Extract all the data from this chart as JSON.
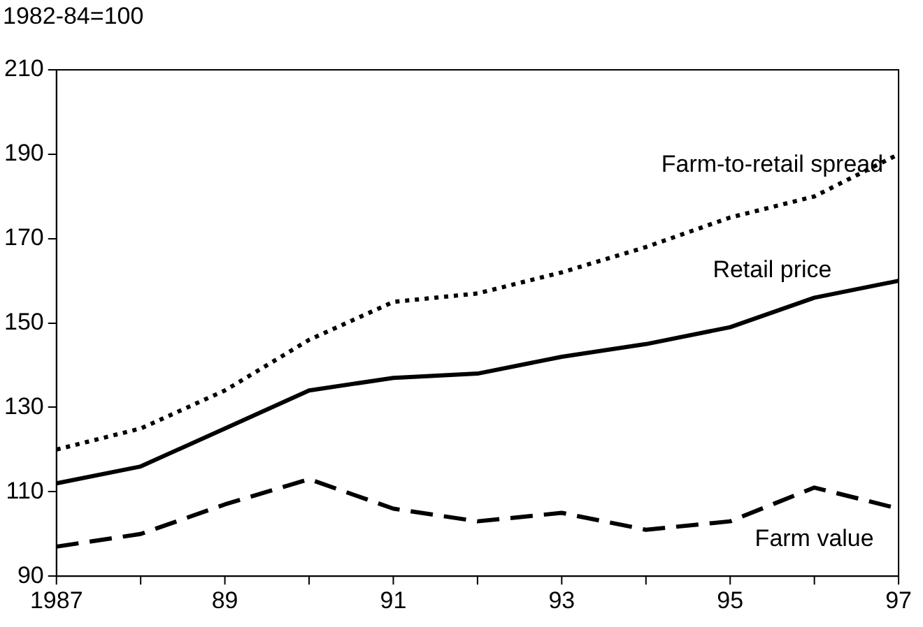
{
  "chart_data": {
    "type": "line",
    "ylabel": "1982-84=100",
    "x": [
      1987,
      1988,
      1989,
      1990,
      1991,
      1992,
      1993,
      1994,
      1995,
      1996,
      1997
    ],
    "series": [
      {
        "name": "Farm-to-retail spread",
        "color": "#000000",
        "line_style": "dotted",
        "values": [
          120,
          125,
          134,
          146,
          155,
          157,
          162,
          168,
          175,
          180,
          190
        ]
      },
      {
        "name": "Retail price",
        "color": "#000000",
        "line_style": "solid",
        "values": [
          112,
          116,
          125,
          134,
          137,
          138,
          142,
          145,
          149,
          156,
          160
        ]
      },
      {
        "name": "Farm value",
        "color": "#000000",
        "line_style": "dashed",
        "values": [
          97,
          100,
          107,
          113,
          106,
          103,
          105,
          101,
          103,
          111,
          106
        ]
      }
    ],
    "xlim": [
      1987,
      1997
    ],
    "xticks": [
      {
        "value": 1987,
        "label": "1987"
      },
      {
        "value": 1988,
        "label": null
      },
      {
        "value": 1989,
        "label": "89"
      },
      {
        "value": 1990,
        "label": null
      },
      {
        "value": 1991,
        "label": "91"
      },
      {
        "value": 1992,
        "label": null
      },
      {
        "value": 1993,
        "label": "93"
      },
      {
        "value": 1994,
        "label": null
      },
      {
        "value": 1995,
        "label": "95"
      },
      {
        "value": 1996,
        "label": null
      },
      {
        "value": 1997,
        "label": "97"
      }
    ],
    "ylim": [
      90,
      210
    ],
    "yticks": [
      90,
      110,
      130,
      150,
      170,
      190,
      210
    ],
    "grid": false,
    "legend": false,
    "marker": "none"
  }
}
